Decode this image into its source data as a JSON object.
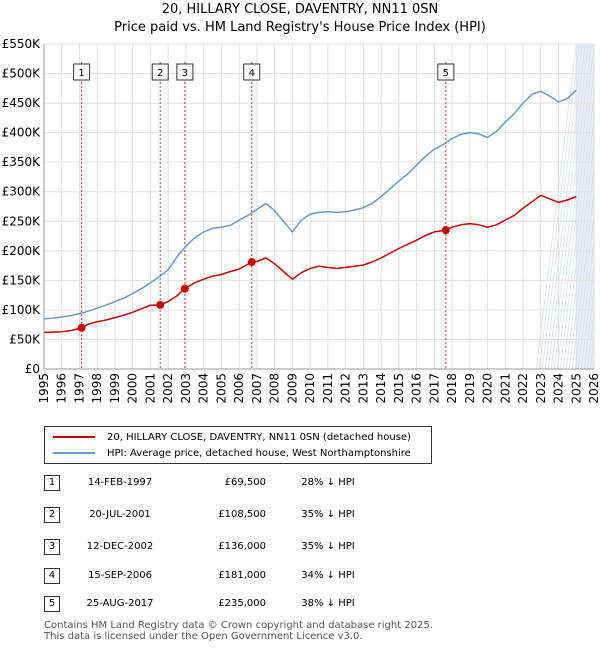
{
  "title_line1": "20, HILLARY CLOSE, DAVENTRY, NN11 0SN",
  "title_line2": "Price paid vs. HM Land Registry's House Price Index (HPI)",
  "colors": {
    "property": "#cc0000",
    "hpi": "#6699cc",
    "marker_line": "#cc0000",
    "shade": "#e8eef7",
    "grid": "#e0e0e0"
  },
  "legend": {
    "property_label": "20, HILLARY CLOSE, DAVENTRY, NN11 0SN (detached house)",
    "hpi_label": "HPI: Average price, detached house, West Northamptonshire"
  },
  "sales": [
    {
      "num": "1",
      "date": "14-FEB-1997",
      "price": "£69,500",
      "hpi": "28% ↓ HPI"
    },
    {
      "num": "2",
      "date": "20-JUL-2001",
      "price": "£108,500",
      "hpi": "35% ↓ HPI"
    },
    {
      "num": "3",
      "date": "12-DEC-2002",
      "price": "£136,000",
      "hpi": "35% ↓ HPI"
    },
    {
      "num": "4",
      "date": "15-SEP-2006",
      "price": "£181,000",
      "hpi": "34% ↓ HPI"
    },
    {
      "num": "5",
      "date": "25-AUG-2017",
      "price": "£235,000",
      "hpi": "38% ↓ HPI"
    }
  ],
  "footer_line1": "Contains HM Land Registry data © Crown copyright and database right 2025.",
  "footer_line2": "This data is licensed under the Open Government Licence v3.0.",
  "chart_data": {
    "type": "line",
    "title": "20, HILLARY CLOSE, DAVENTRY, NN11 0SN",
    "subtitle": "Price paid vs. HM Land Registry's House Price Index (HPI)",
    "xlabel": "",
    "ylabel": "",
    "xlim": [
      1995,
      2026
    ],
    "ylim": [
      0,
      550000
    ],
    "x_ticks": [
      1995,
      1996,
      1997,
      1998,
      1999,
      2000,
      2001,
      2002,
      2003,
      2004,
      2005,
      2006,
      2007,
      2008,
      2009,
      2010,
      2011,
      2012,
      2013,
      2014,
      2015,
      2016,
      2017,
      2018,
      2019,
      2020,
      2021,
      2022,
      2023,
      2024,
      2025,
      2026
    ],
    "y_ticks": [
      0,
      50000,
      100000,
      150000,
      200000,
      250000,
      300000,
      350000,
      400000,
      450000,
      500000,
      550000
    ],
    "y_tick_labels": [
      "£0",
      "£50K",
      "£100K",
      "£150K",
      "£200K",
      "£250K",
      "£300K",
      "£350K",
      "£400K",
      "£450K",
      "£500K",
      "£550K"
    ],
    "shaded_after": 2025.0,
    "series": [
      {
        "name": "HPI: Average price, detached house, West Northamptonshire",
        "x": [
          1995.0,
          1995.5,
          1996.0,
          1996.5,
          1997.0,
          1997.5,
          1998.0,
          1998.5,
          1999.0,
          1999.5,
          2000.0,
          2000.5,
          2001.0,
          2001.5,
          2002.0,
          2002.5,
          2003.0,
          2003.5,
          2004.0,
          2004.5,
          2005.0,
          2005.5,
          2006.0,
          2006.5,
          2007.0,
          2007.5,
          2008.0,
          2008.5,
          2009.0,
          2009.5,
          2010.0,
          2010.5,
          2011.0,
          2011.5,
          2012.0,
          2012.5,
          2013.0,
          2013.5,
          2014.0,
          2014.5,
          2015.0,
          2015.5,
          2016.0,
          2016.5,
          2017.0,
          2017.5,
          2018.0,
          2018.5,
          2019.0,
          2019.5,
          2020.0,
          2020.5,
          2021.0,
          2021.5,
          2022.0,
          2022.5,
          2023.0,
          2023.5,
          2024.0,
          2024.5,
          2025.0
        ],
        "values": [
          85000,
          86000,
          88000,
          90000,
          94000,
          98000,
          103000,
          108000,
          114000,
          120000,
          128000,
          136000,
          146000,
          156000,
          168000,
          190000,
          208000,
          222000,
          232000,
          238000,
          240000,
          243000,
          252000,
          260000,
          270000,
          280000,
          268000,
          250000,
          232000,
          252000,
          262000,
          265000,
          266000,
          265000,
          266000,
          269000,
          273000,
          280000,
          292000,
          305000,
          318000,
          330000,
          345000,
          360000,
          372000,
          380000,
          390000,
          397000,
          400000,
          398000,
          392000,
          402000,
          418000,
          432000,
          450000,
          465000,
          470000,
          462000,
          452000,
          458000,
          472000
        ]
      },
      {
        "name": "20, HILLARY CLOSE, DAVENTRY, NN11 0SN (detached house)",
        "x": [
          1995.0,
          1995.5,
          1996.0,
          1996.5,
          1997.12,
          1997.5,
          1998.0,
          1998.5,
          1999.0,
          1999.5,
          2000.0,
          2000.5,
          2001.0,
          2001.55,
          2002.0,
          2002.5,
          2002.94,
          2003.5,
          2004.0,
          2004.5,
          2005.0,
          2005.5,
          2006.0,
          2006.71,
          2007.0,
          2007.5,
          2008.0,
          2008.5,
          2009.0,
          2009.5,
          2010.0,
          2010.5,
          2011.0,
          2011.5,
          2012.0,
          2012.5,
          2013.0,
          2013.5,
          2014.0,
          2014.5,
          2015.0,
          2015.5,
          2016.0,
          2016.5,
          2017.0,
          2017.65,
          2018.0,
          2018.5,
          2019.0,
          2019.5,
          2020.0,
          2020.5,
          2021.0,
          2021.5,
          2022.0,
          2022.5,
          2023.0,
          2023.5,
          2024.0,
          2024.5,
          2025.0
        ],
        "values": [
          62000,
          62500,
          63000,
          65000,
          69500,
          76000,
          80000,
          83000,
          87000,
          91000,
          96000,
          102000,
          108000,
          108500,
          114000,
          124000,
          136000,
          146000,
          152000,
          157000,
          160000,
          165000,
          169000,
          181000,
          182000,
          188000,
          178000,
          165000,
          152000,
          163000,
          170000,
          174000,
          172000,
          170000,
          172000,
          174000,
          176000,
          181000,
          188000,
          196000,
          204000,
          211000,
          218000,
          226000,
          232000,
          235000,
          240000,
          244000,
          246000,
          244000,
          240000,
          244000,
          252000,
          260000,
          272000,
          283000,
          294000,
          288000,
          282000,
          286000,
          292000
        ]
      }
    ],
    "sale_markers": [
      {
        "label": "1",
        "x": 1997.12,
        "value": 69500
      },
      {
        "label": "2",
        "x": 2001.55,
        "value": 108500
      },
      {
        "label": "3",
        "x": 2002.94,
        "value": 136000
      },
      {
        "label": "4",
        "x": 2006.71,
        "value": 181000
      },
      {
        "label": "5",
        "x": 2017.65,
        "value": 235000
      }
    ]
  }
}
